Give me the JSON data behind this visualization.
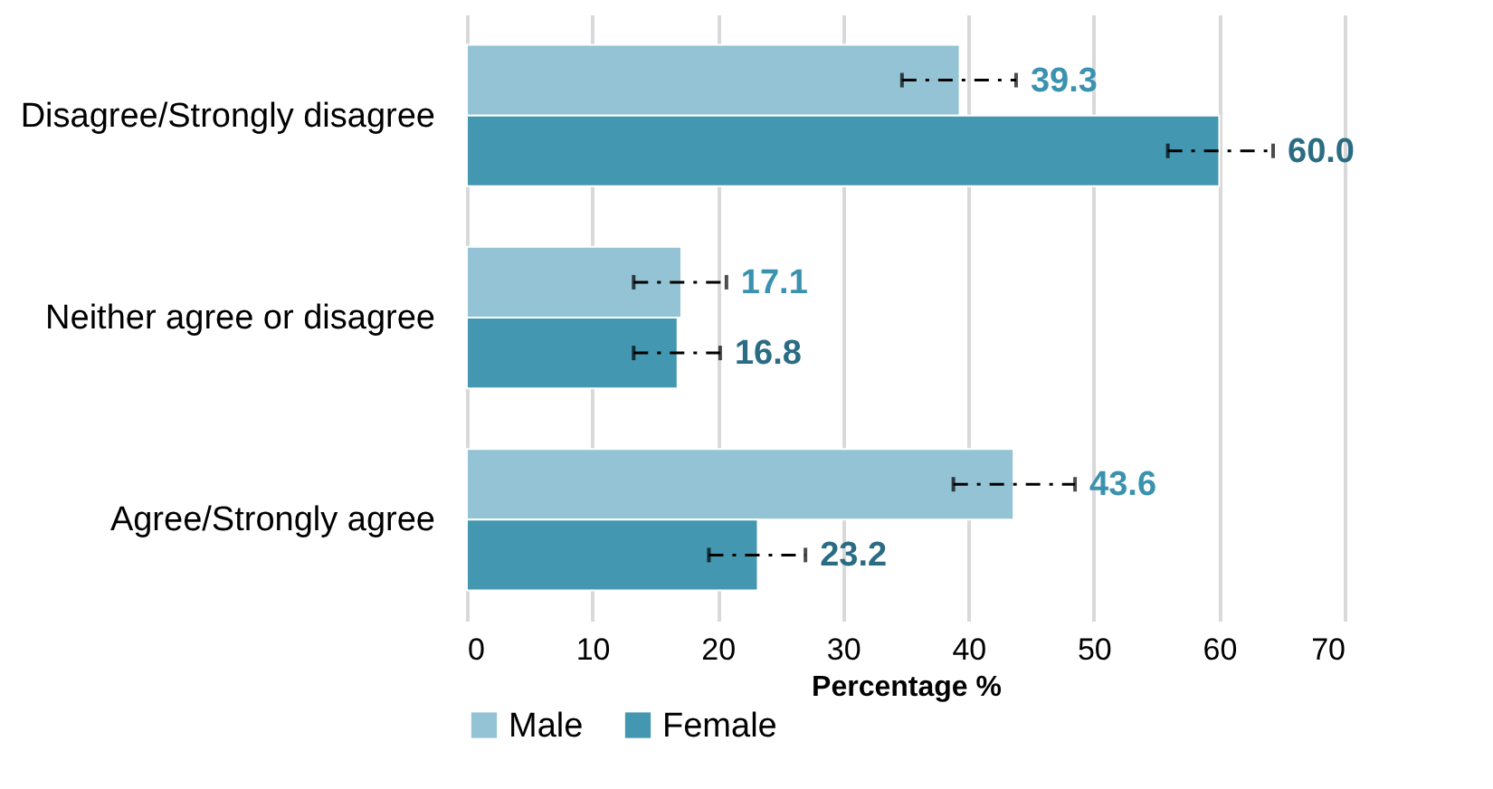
{
  "chart_data": {
    "type": "bar",
    "orientation": "horizontal",
    "categories": [
      "Disagree/Strongly disagree",
      "Neither agree or disagree",
      "Agree/Strongly agree"
    ],
    "series": [
      {
        "name": "Male",
        "color": "#93c3d4",
        "values": [
          39.3,
          17.1,
          43.6
        ],
        "value_labels": [
          "39.3",
          "17.1",
          "43.6"
        ],
        "errors": [
          [
            34.7,
            43.8
          ],
          [
            13.3,
            20.7
          ],
          [
            38.8,
            48.5
          ]
        ]
      },
      {
        "name": "Female",
        "color": "#4397b0",
        "values": [
          60.0,
          16.8,
          23.2
        ],
        "value_labels": [
          "60.0",
          "16.8",
          "23.2"
        ],
        "errors": [
          [
            55.9,
            64.3
          ],
          [
            13.3,
            20.2
          ],
          [
            19.3,
            27.0
          ]
        ]
      }
    ],
    "xlabel": "Percentage %",
    "xlim": [
      0,
      70
    ],
    "xticks": [
      0,
      10,
      20,
      30,
      40,
      50,
      60,
      70
    ],
    "grid": "x",
    "legend": "bottom"
  }
}
